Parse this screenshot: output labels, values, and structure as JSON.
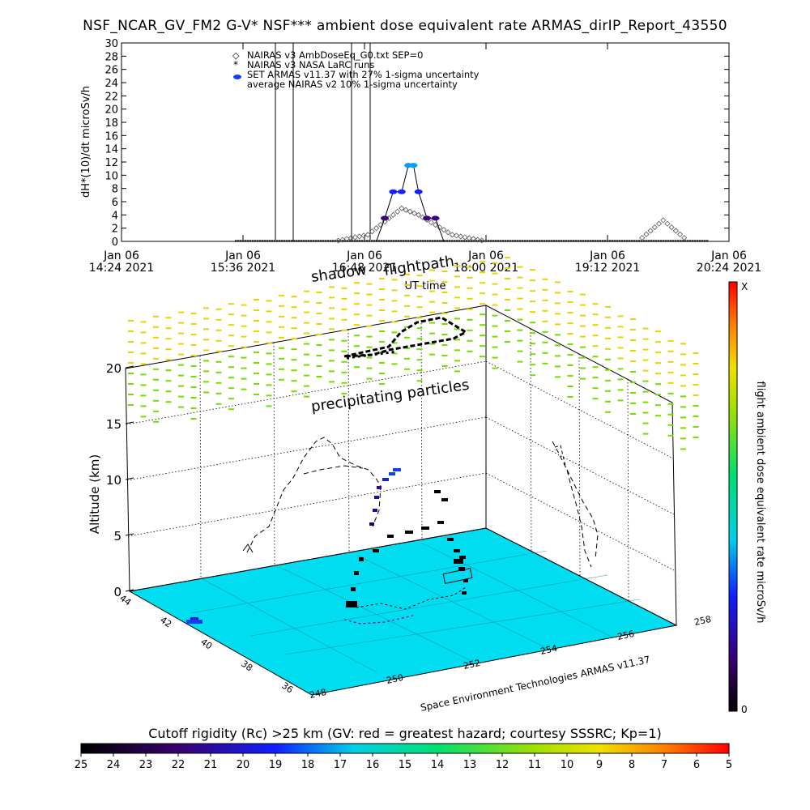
{
  "title": "NSF_NCAR_GV_FM2 G-V* NSF*** ambient dose equivalent rate ARMAS_dirIP_Report_43550",
  "colors": {
    "ground": "#00ddf0",
    "armas_point": "#1040ff",
    "nairas_point": "#555555",
    "particles_high": "#e8d400",
    "particles_low": "#70e000"
  },
  "chart_data": [
    {
      "type": "line",
      "ylabel": "dH*(10)/dt microSv/h",
      "xlabel": "UT time",
      "ylim": [
        0,
        30
      ],
      "y_ticks": [
        "0",
        "2",
        "4",
        "6",
        "8",
        "10",
        "12",
        "14",
        "16",
        "18",
        "20",
        "22",
        "24",
        "26",
        "28",
        "30"
      ],
      "x_ticks": [
        {
          "top": "Jan 06",
          "bottom": "14:24 2021"
        },
        {
          "top": "Jan 06",
          "bottom": "15:36 2021"
        },
        {
          "top": "Jan 06",
          "bottom": "16:48 2021"
        },
        {
          "top": "Jan 06",
          "bottom": "18:00 2021"
        },
        {
          "top": "Jan 06",
          "bottom": "19:12 2021"
        },
        {
          "top": "Jan 06",
          "bottom": "20:24 2021"
        }
      ],
      "legend": [
        {
          "symbol": "◇",
          "text": "NAIRAS v3 AmbDoseEq_G0.txt SEP=0"
        },
        {
          "symbol": "*",
          "text": "NAIRAS v3 NASA LaRC runs"
        },
        {
          "symbol": "●",
          "text": "SET ARMAS v11.37 with 27% 1-sigma uncertainty"
        },
        {
          "symbol": "",
          "text": "average NAIRAS v2 10% 1-sigma uncertainty"
        }
      ],
      "legend_position": "top-left",
      "series": [
        {
          "name": "SET ARMAS v11.37 with 27% 1-sigma uncertainty",
          "x": [
            "16:55",
            "17:00",
            "17:05",
            "17:10",
            "17:14",
            "17:17",
            "17:20",
            "17:25",
            "17:30",
            "17:35"
          ],
          "values": [
            0,
            3.5,
            7.5,
            7.5,
            11.5,
            11.5,
            7.5,
            3.5,
            3.5,
            0
          ]
        },
        {
          "name": "NAIRAS v3 AmbDoseEq_G0.txt SEP=0",
          "x": [
            "14:24",
            "16:30",
            "16:50",
            "17:00",
            "17:10",
            "17:20",
            "17:40",
            "18:00",
            "19:30",
            "19:45",
            "20:00",
            "20:24"
          ],
          "values": [
            0,
            0,
            1,
            3,
            5,
            4,
            1,
            0,
            0,
            3.2,
            0,
            0
          ]
        }
      ]
    },
    {
      "type": "scatter",
      "zlabel": "Altitude (km)",
      "z_ticks": [
        "0",
        "5",
        "10",
        "15",
        "20"
      ],
      "lat_ticks": [
        "44",
        "42",
        "40",
        "38",
        "36"
      ],
      "lon_ticks": [
        "248",
        "250",
        "252",
        "254",
        "256",
        "258"
      ],
      "annotations": [
        "shadow",
        "flightpath",
        "precipitating particles"
      ],
      "credit": "Space Environment Technologies ARMAS v11.37",
      "colorbar": {
        "label": "flight ambient dose equivalent rate microSv/h",
        "max": "X",
        "min": "0"
      }
    },
    {
      "type": "heatmap",
      "title": "Cutoff rigidity (Rc) >25 km (GV: red = greatest hazard; courtesy SSSRC; Kp=1)",
      "ticks": [
        "25",
        "24",
        "23",
        "22",
        "21",
        "20",
        "19",
        "18",
        "17",
        "16",
        "15",
        "14",
        "13",
        "12",
        "11",
        "10",
        "9",
        "8",
        "7",
        "6",
        "5"
      ]
    }
  ]
}
